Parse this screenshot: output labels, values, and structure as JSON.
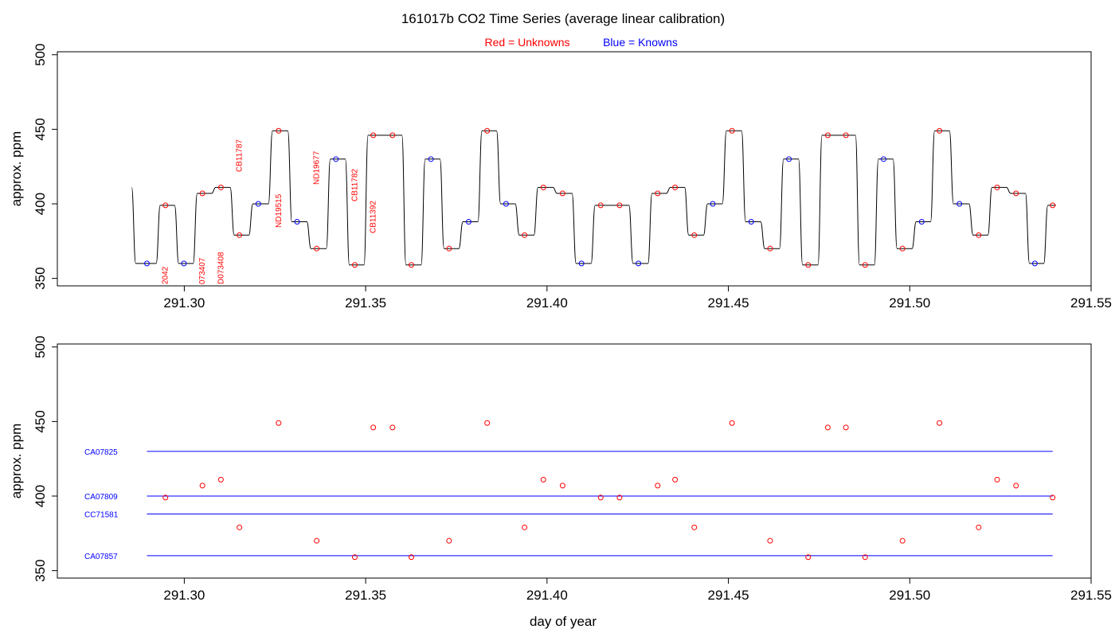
{
  "title": "161017b   CO2 Time Series (average linear calibration)",
  "legend": {
    "unknowns_label": "Red = Unknowns",
    "knowns_label": "Blue = Knowns",
    "unknowns_color": "#ff0000",
    "knowns_color": "#0000ff"
  },
  "chart_data": [
    {
      "type": "line",
      "panel": "top",
      "xlabel": "",
      "ylabel": "approx. ppm",
      "xlim": [
        291.265,
        291.55
      ],
      "ylim": [
        345,
        502
      ],
      "xticks": [
        291.3,
        291.35,
        291.4,
        291.45,
        291.5,
        291.55
      ],
      "xtick_labels": [
        "291.30",
        "291.35",
        "291.40",
        "291.45",
        "291.50",
        "291.55"
      ],
      "yticks": [
        350,
        400,
        450,
        500
      ],
      "ytick_labels": [
        "350",
        "400",
        "450",
        "500"
      ],
      "trace_start": {
        "x": 291.2855,
        "y": 411
      },
      "samples": [
        {
          "x": 291.2897,
          "y": 360,
          "kind": "known"
        },
        {
          "x": 291.2948,
          "y": 399,
          "kind": "unknown"
        },
        {
          "x": 291.2999,
          "y": 360,
          "kind": "known"
        },
        {
          "x": 291.305,
          "y": 407,
          "kind": "unknown"
        },
        {
          "x": 291.3101,
          "y": 411,
          "kind": "unknown"
        },
        {
          "x": 291.3152,
          "y": 379,
          "kind": "unknown"
        },
        {
          "x": 291.3204,
          "y": 400,
          "kind": "known"
        },
        {
          "x": 291.326,
          "y": 449,
          "kind": "unknown"
        },
        {
          "x": 291.3311,
          "y": 388,
          "kind": "known"
        },
        {
          "x": 291.3365,
          "y": 370,
          "kind": "unknown"
        },
        {
          "x": 291.3418,
          "y": 430,
          "kind": "known"
        },
        {
          "x": 291.347,
          "y": 359,
          "kind": "unknown"
        },
        {
          "x": 291.3521,
          "y": 446,
          "kind": "unknown"
        },
        {
          "x": 291.3574,
          "y": 446,
          "kind": "unknown"
        },
        {
          "x": 291.3626,
          "y": 359,
          "kind": "unknown"
        },
        {
          "x": 291.368,
          "y": 430,
          "kind": "known"
        },
        {
          "x": 291.373,
          "y": 370,
          "kind": "unknown"
        },
        {
          "x": 291.3784,
          "y": 388,
          "kind": "known"
        },
        {
          "x": 291.3835,
          "y": 449,
          "kind": "unknown"
        },
        {
          "x": 291.3887,
          "y": 400,
          "kind": "known"
        },
        {
          "x": 291.3938,
          "y": 379,
          "kind": "unknown"
        },
        {
          "x": 291.399,
          "y": 411,
          "kind": "unknown"
        },
        {
          "x": 291.4043,
          "y": 407,
          "kind": "unknown"
        },
        {
          "x": 291.4095,
          "y": 360,
          "kind": "known"
        },
        {
          "x": 291.4148,
          "y": 399,
          "kind": "unknown"
        },
        {
          "x": 291.42,
          "y": 399,
          "kind": "unknown"
        },
        {
          "x": 291.4252,
          "y": 360,
          "kind": "known"
        },
        {
          "x": 291.4305,
          "y": 407,
          "kind": "unknown"
        },
        {
          "x": 291.4353,
          "y": 411,
          "kind": "unknown"
        },
        {
          "x": 291.4406,
          "y": 379,
          "kind": "unknown"
        },
        {
          "x": 291.4457,
          "y": 400,
          "kind": "known"
        },
        {
          "x": 291.451,
          "y": 449,
          "kind": "unknown"
        },
        {
          "x": 291.4563,
          "y": 388,
          "kind": "known"
        },
        {
          "x": 291.4615,
          "y": 370,
          "kind": "unknown"
        },
        {
          "x": 291.4667,
          "y": 430,
          "kind": "known"
        },
        {
          "x": 291.472,
          "y": 359,
          "kind": "unknown"
        },
        {
          "x": 291.4774,
          "y": 446,
          "kind": "unknown"
        },
        {
          "x": 291.4824,
          "y": 446,
          "kind": "unknown"
        },
        {
          "x": 291.4877,
          "y": 359,
          "kind": "unknown"
        },
        {
          "x": 291.4928,
          "y": 430,
          "kind": "known"
        },
        {
          "x": 291.498,
          "y": 370,
          "kind": "unknown"
        },
        {
          "x": 291.5033,
          "y": 388,
          "kind": "known"
        },
        {
          "x": 291.5082,
          "y": 449,
          "kind": "unknown"
        },
        {
          "x": 291.5137,
          "y": 400,
          "kind": "known"
        },
        {
          "x": 291.519,
          "y": 379,
          "kind": "unknown"
        },
        {
          "x": 291.5241,
          "y": 411,
          "kind": "unknown"
        },
        {
          "x": 291.5293,
          "y": 407,
          "kind": "unknown"
        },
        {
          "x": 291.5345,
          "y": 360,
          "kind": "known"
        },
        {
          "x": 291.5394,
          "y": 399,
          "kind": "unknown"
        }
      ],
      "annotations": [
        {
          "text": "2042",
          "x": 291.2948
        },
        {
          "text": "073407",
          "x": 291.305
        },
        {
          "text": "D073408",
          "x": 291.3101
        },
        {
          "text": "CB11787",
          "x": 291.3152
        },
        {
          "text": "ND19515",
          "x": 291.326
        },
        {
          "text": "ND19677",
          "x": 291.3365
        },
        {
          "text": "CB11782",
          "x": 291.347
        },
        {
          "text": "CB11392",
          "x": 291.3521
        }
      ]
    },
    {
      "type": "scatter",
      "panel": "bottom",
      "xlabel": "day of year",
      "ylabel": "approx. ppm",
      "xlim": [
        291.265,
        291.55
      ],
      "ylim": [
        345,
        502
      ],
      "xticks": [
        291.3,
        291.35,
        291.4,
        291.45,
        291.5,
        291.55
      ],
      "xtick_labels": [
        "291.30",
        "291.35",
        "291.40",
        "291.45",
        "291.50",
        "291.55"
      ],
      "yticks": [
        350,
        400,
        450,
        500
      ],
      "ytick_labels": [
        "350",
        "400",
        "450",
        "500"
      ],
      "reference_lines": [
        {
          "name": "CA07825",
          "y": 430,
          "x_range": [
            291.2897,
            291.5394
          ]
        },
        {
          "name": "CA07809",
          "y": 400,
          "x_range": [
            291.2897,
            291.5394
          ]
        },
        {
          "name": "CC71581",
          "y": 388,
          "x_range": [
            291.2897,
            291.5394
          ]
        },
        {
          "name": "CA07857",
          "y": 360,
          "x_range": [
            291.2897,
            291.5394
          ]
        }
      ],
      "points": [
        {
          "x": 291.2948,
          "y": 399
        },
        {
          "x": 291.305,
          "y": 407
        },
        {
          "x": 291.3101,
          "y": 411
        },
        {
          "x": 291.3152,
          "y": 379
        },
        {
          "x": 291.326,
          "y": 449
        },
        {
          "x": 291.3365,
          "y": 370
        },
        {
          "x": 291.347,
          "y": 359
        },
        {
          "x": 291.3521,
          "y": 446
        },
        {
          "x": 291.3574,
          "y": 446
        },
        {
          "x": 291.3626,
          "y": 359
        },
        {
          "x": 291.373,
          "y": 370
        },
        {
          "x": 291.3835,
          "y": 449
        },
        {
          "x": 291.3938,
          "y": 379
        },
        {
          "x": 291.399,
          "y": 411
        },
        {
          "x": 291.4043,
          "y": 407
        },
        {
          "x": 291.4148,
          "y": 399
        },
        {
          "x": 291.42,
          "y": 399
        },
        {
          "x": 291.4305,
          "y": 407
        },
        {
          "x": 291.4353,
          "y": 411
        },
        {
          "x": 291.4406,
          "y": 379
        },
        {
          "x": 291.451,
          "y": 449
        },
        {
          "x": 291.4615,
          "y": 370
        },
        {
          "x": 291.472,
          "y": 359
        },
        {
          "x": 291.4774,
          "y": 446
        },
        {
          "x": 291.4824,
          "y": 446
        },
        {
          "x": 291.4877,
          "y": 359
        },
        {
          "x": 291.498,
          "y": 370
        },
        {
          "x": 291.5082,
          "y": 449
        },
        {
          "x": 291.519,
          "y": 379
        },
        {
          "x": 291.5241,
          "y": 411
        },
        {
          "x": 291.5293,
          "y": 407
        },
        {
          "x": 291.5394,
          "y": 399
        }
      ]
    }
  ]
}
